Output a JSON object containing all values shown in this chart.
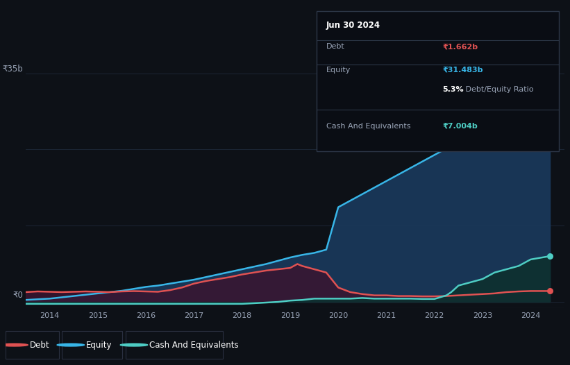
{
  "background_color": "#0d1117",
  "plot_bg_color": "#131b2e",
  "title": "Jun 30 2024",
  "ylabel_35b": "₹35b",
  "ylabel_0": "₹0",
  "debt_label": "Debt",
  "equity_label": "Equity",
  "cash_label": "Cash And Equivalents",
  "debt_value": "₹1.662b",
  "equity_value": "₹31.483b",
  "debt_equity_ratio_bold": "5.3%",
  "debt_equity_ratio_rest": " Debt/Equity Ratio",
  "cash_value": "₹7.004b",
  "debt_color": "#e05252",
  "equity_color": "#38b6e8",
  "cash_color": "#4ecdc4",
  "grid_color": "#1e2a3a",
  "text_color": "#9aa5b8",
  "x_years": [
    2014,
    2015,
    2016,
    2017,
    2018,
    2019,
    2020,
    2021,
    2022,
    2023,
    2024
  ],
  "debt_data_x": [
    2013.5,
    2013.75,
    2014.0,
    2014.25,
    2014.5,
    2014.75,
    2015.0,
    2015.25,
    2015.5,
    2015.75,
    2016.0,
    2016.25,
    2016.5,
    2016.75,
    2017.0,
    2017.25,
    2017.5,
    2017.75,
    2018.0,
    2018.25,
    2018.5,
    2018.75,
    2019.0,
    2019.15,
    2019.25,
    2019.5,
    2019.75,
    2020.0,
    2020.25,
    2020.5,
    2020.75,
    2021.0,
    2021.25,
    2021.5,
    2021.75,
    2022.0,
    2022.25,
    2022.5,
    2022.75,
    2023.0,
    2023.25,
    2023.5,
    2023.75,
    2024.0,
    2024.4
  ],
  "debt_data_y": [
    1.5,
    1.6,
    1.55,
    1.5,
    1.55,
    1.6,
    1.55,
    1.5,
    1.6,
    1.65,
    1.6,
    1.55,
    1.8,
    2.2,
    2.8,
    3.2,
    3.5,
    3.8,
    4.2,
    4.5,
    4.8,
    5.0,
    5.2,
    5.8,
    5.5,
    5.0,
    4.5,
    2.2,
    1.5,
    1.2,
    1.0,
    1.0,
    0.9,
    0.9,
    0.85,
    0.85,
    0.9,
    1.0,
    1.1,
    1.2,
    1.3,
    1.5,
    1.6,
    1.662,
    1.662
  ],
  "equity_data_x": [
    2013.5,
    2013.75,
    2014.0,
    2014.25,
    2014.5,
    2014.75,
    2015.0,
    2015.25,
    2015.5,
    2015.75,
    2016.0,
    2016.25,
    2016.5,
    2016.75,
    2017.0,
    2017.25,
    2017.5,
    2017.75,
    2018.0,
    2018.25,
    2018.5,
    2018.75,
    2019.0,
    2019.25,
    2019.5,
    2019.75,
    2020.0,
    2020.25,
    2020.5,
    2020.75,
    2021.0,
    2021.25,
    2021.5,
    2021.75,
    2022.0,
    2022.25,
    2022.5,
    2022.75,
    2023.0,
    2023.25,
    2023.5,
    2023.75,
    2024.0,
    2024.4
  ],
  "equity_data_y": [
    0.3,
    0.4,
    0.5,
    0.7,
    0.9,
    1.1,
    1.3,
    1.5,
    1.7,
    2.0,
    2.3,
    2.5,
    2.8,
    3.1,
    3.4,
    3.8,
    4.2,
    4.6,
    5.0,
    5.4,
    5.8,
    6.3,
    6.8,
    7.2,
    7.5,
    8.0,
    14.5,
    15.5,
    16.5,
    17.5,
    18.5,
    19.5,
    20.5,
    21.5,
    22.5,
    23.5,
    24.5,
    25.5,
    26.5,
    27.5,
    28.5,
    29.5,
    31.0,
    31.483
  ],
  "cash_data_x": [
    2013.5,
    2013.75,
    2014.0,
    2014.25,
    2014.5,
    2014.75,
    2015.0,
    2015.25,
    2015.5,
    2015.75,
    2016.0,
    2016.25,
    2016.5,
    2016.75,
    2017.0,
    2017.25,
    2017.5,
    2017.75,
    2018.0,
    2018.25,
    2018.5,
    2018.75,
    2019.0,
    2019.25,
    2019.5,
    2019.6,
    2019.75,
    2020.0,
    2020.25,
    2020.5,
    2020.75,
    2021.0,
    2021.25,
    2021.5,
    2021.75,
    2022.0,
    2022.25,
    2022.35,
    2022.5,
    2022.75,
    2023.0,
    2023.25,
    2023.5,
    2023.75,
    2024.0,
    2024.4
  ],
  "cash_data_y": [
    -0.3,
    -0.3,
    -0.3,
    -0.3,
    -0.3,
    -0.3,
    -0.3,
    -0.3,
    -0.3,
    -0.3,
    -0.3,
    -0.3,
    -0.3,
    -0.3,
    -0.3,
    -0.3,
    -0.3,
    -0.3,
    -0.3,
    -0.2,
    -0.1,
    0.0,
    0.2,
    0.3,
    0.5,
    0.5,
    0.5,
    0.5,
    0.5,
    0.6,
    0.5,
    0.5,
    0.5,
    0.5,
    0.45,
    0.45,
    1.0,
    1.5,
    2.5,
    3.0,
    3.5,
    4.5,
    5.0,
    5.5,
    6.5,
    7.004
  ],
  "ylim": [
    -1,
    37
  ],
  "xlim": [
    2013.5,
    2024.7
  ]
}
